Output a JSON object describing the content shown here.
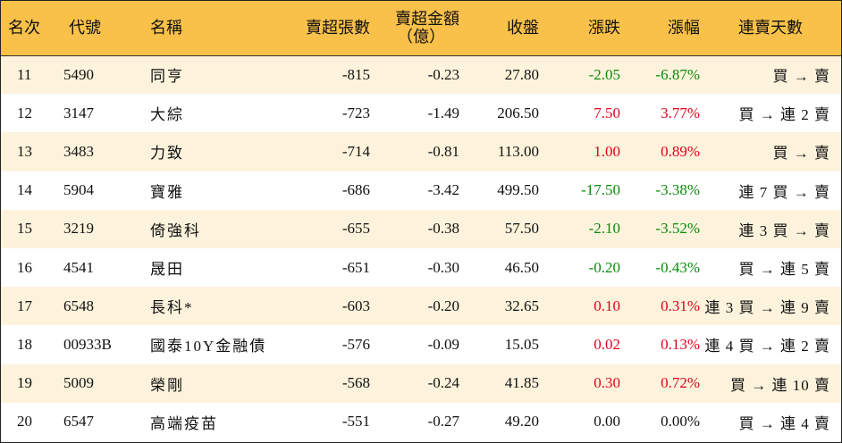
{
  "headers": {
    "rank": "名次",
    "code": "代號",
    "name": "名稱",
    "shares": "賣超張數",
    "amount_line1": "賣超金額",
    "amount_line2": "（億）",
    "close": "收盤",
    "change": "漲跌",
    "change_pct": "漲幅",
    "streak": "連賣天數"
  },
  "colors": {
    "header_bg": "#f9c14a",
    "stripe_bg": "#fdf3dc",
    "up": "#e2001a",
    "down": "#0a8a0a"
  },
  "rows": [
    {
      "rank": "11",
      "code": "5490",
      "name": "同亨",
      "shares": "-815",
      "amount": "-0.23",
      "close": "27.80",
      "change": "-2.05",
      "change_pct": "-6.87%",
      "dir": "down",
      "streak": "買 → 賣"
    },
    {
      "rank": "12",
      "code": "3147",
      "name": "大綜",
      "shares": "-723",
      "amount": "-1.49",
      "close": "206.50",
      "change": "7.50",
      "change_pct": "3.77%",
      "dir": "up",
      "streak": "買 → 連 2 賣"
    },
    {
      "rank": "13",
      "code": "3483",
      "name": "力致",
      "shares": "-714",
      "amount": "-0.81",
      "close": "113.00",
      "change": "1.00",
      "change_pct": "0.89%",
      "dir": "up",
      "streak": "買 → 賣"
    },
    {
      "rank": "14",
      "code": "5904",
      "name": "寶雅",
      "shares": "-686",
      "amount": "-3.42",
      "close": "499.50",
      "change": "-17.50",
      "change_pct": "-3.38%",
      "dir": "down",
      "streak": "連 7 買 → 賣"
    },
    {
      "rank": "15",
      "code": "3219",
      "name": "倚強科",
      "shares": "-655",
      "amount": "-0.38",
      "close": "57.50",
      "change": "-2.10",
      "change_pct": "-3.52%",
      "dir": "down",
      "streak": "連 3 買 → 賣"
    },
    {
      "rank": "16",
      "code": "4541",
      "name": "晟田",
      "shares": "-651",
      "amount": "-0.30",
      "close": "46.50",
      "change": "-0.20",
      "change_pct": "-0.43%",
      "dir": "down",
      "streak": "買 → 連 5 賣"
    },
    {
      "rank": "17",
      "code": "6548",
      "name": "長科*",
      "shares": "-603",
      "amount": "-0.20",
      "close": "32.65",
      "change": "0.10",
      "change_pct": "0.31%",
      "dir": "up",
      "streak": "連 3 買 → 連 9 賣"
    },
    {
      "rank": "18",
      "code": "00933B",
      "name": "國泰10Y金融債",
      "shares": "-576",
      "amount": "-0.09",
      "close": "15.05",
      "change": "0.02",
      "change_pct": "0.13%",
      "dir": "up",
      "streak": "連 4 買 → 連 2 賣"
    },
    {
      "rank": "19",
      "code": "5009",
      "name": "榮剛",
      "shares": "-568",
      "amount": "-0.24",
      "close": "41.85",
      "change": "0.30",
      "change_pct": "0.72%",
      "dir": "up",
      "streak": "買 → 連 10 賣"
    },
    {
      "rank": "20",
      "code": "6547",
      "name": "高端疫苗",
      "shares": "-551",
      "amount": "-0.27",
      "close": "49.20",
      "change": "0.00",
      "change_pct": "0.00%",
      "dir": "flat",
      "streak": "買 → 連 4 賣"
    }
  ]
}
